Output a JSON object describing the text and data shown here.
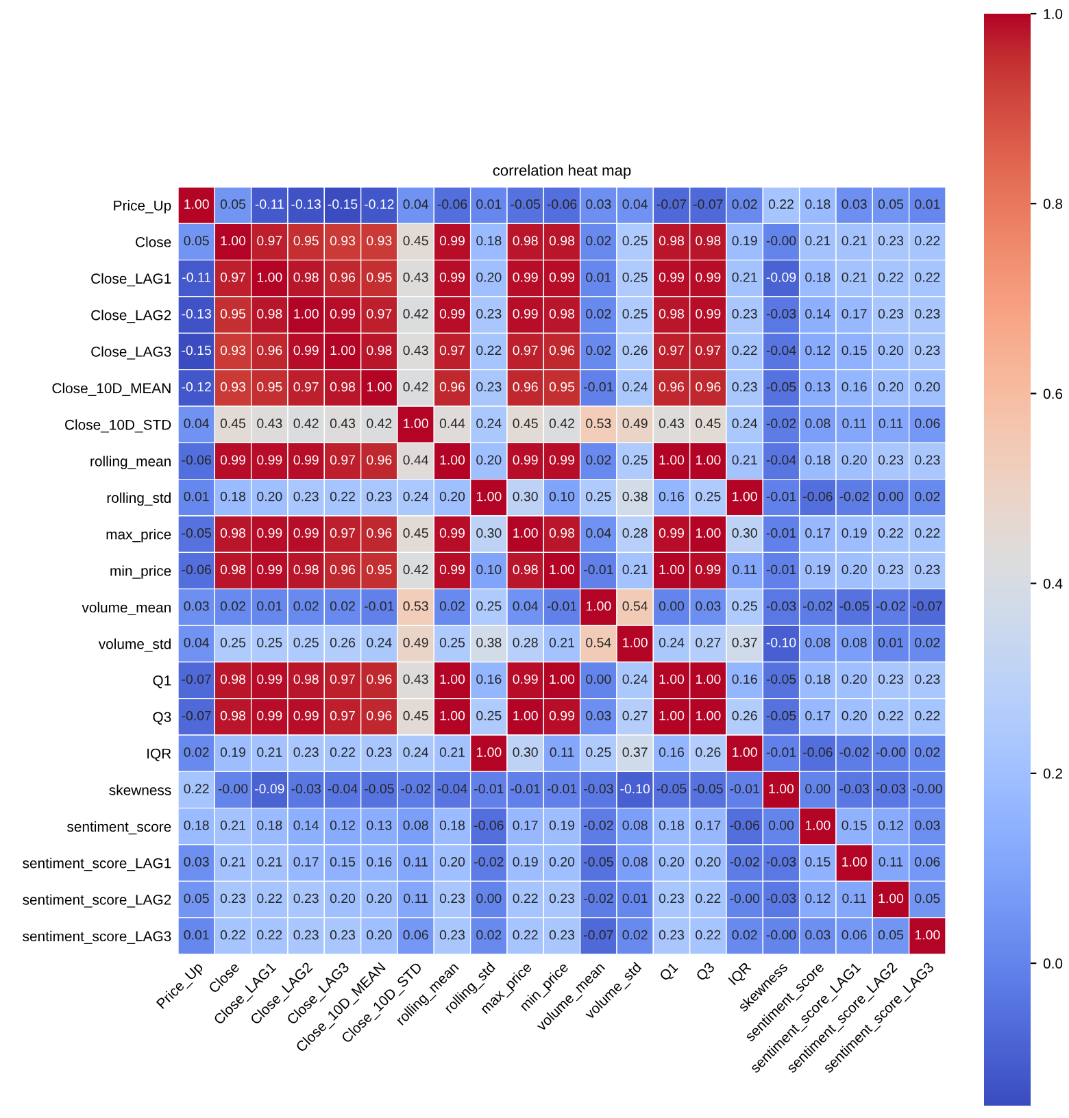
{
  "chart_data": {
    "type": "heatmap",
    "title": "correlation heat map",
    "categories": [
      "Price_Up",
      "Close",
      "Close_LAG1",
      "Close_LAG2",
      "Close_LAG3",
      "Close_10D_MEAN",
      "Close_10D_STD",
      "rolling_mean",
      "rolling_std",
      "max_price",
      "min_price",
      "volume_mean",
      "volume_std",
      "Q1",
      "Q3",
      "IQR",
      "skewness",
      "sentiment_score",
      "sentiment_score_LAG1",
      "sentiment_score_LAG2",
      "sentiment_score_LAG3"
    ],
    "y_categories": [
      "Price_Up",
      "Close",
      "Close_LAG1",
      "Close_LAG2",
      "Close_LAG3",
      "Close_10D_MEAN",
      "Close_10D_STD",
      "rolling_mean",
      "rolling_std",
      "max_price",
      "min_price",
      "volume_mean",
      "volume_std",
      "Q1",
      "Q3",
      "IQR",
      "skewness",
      "sentiment_score",
      "sentiment_score_LAG1",
      "sentiment_score_LAG2",
      "sentiment_score_LAG3"
    ],
    "cells": [
      [
        1.0,
        0.05,
        -0.11,
        -0.13,
        -0.15,
        -0.12,
        0.04,
        -0.06,
        0.01,
        -0.05,
        -0.06,
        0.03,
        0.04,
        -0.07,
        -0.07,
        0.02,
        0.22,
        0.18,
        0.03,
        0.05,
        0.01
      ],
      [
        0.05,
        1.0,
        0.97,
        0.95,
        0.93,
        0.93,
        0.45,
        0.99,
        0.18,
        0.98,
        0.98,
        0.02,
        0.25,
        0.98,
        0.98,
        0.19,
        -0.0,
        0.21,
        0.21,
        0.23,
        0.22
      ],
      [
        -0.11,
        0.97,
        1.0,
        0.98,
        0.96,
        0.95,
        0.43,
        0.99,
        0.2,
        0.99,
        0.99,
        0.01,
        0.25,
        0.99,
        0.99,
        0.21,
        -0.09,
        0.18,
        0.21,
        0.22,
        0.22
      ],
      [
        -0.13,
        0.95,
        0.98,
        1.0,
        0.99,
        0.97,
        0.42,
        0.99,
        0.23,
        0.99,
        0.98,
        0.02,
        0.25,
        0.98,
        0.99,
        0.23,
        -0.03,
        0.14,
        0.17,
        0.23,
        0.23
      ],
      [
        -0.15,
        0.93,
        0.96,
        0.99,
        1.0,
        0.98,
        0.43,
        0.97,
        0.22,
        0.97,
        0.96,
        0.02,
        0.26,
        0.97,
        0.97,
        0.22,
        -0.04,
        0.12,
        0.15,
        0.2,
        0.23
      ],
      [
        -0.12,
        0.93,
        0.95,
        0.97,
        0.98,
        1.0,
        0.42,
        0.96,
        0.23,
        0.96,
        0.95,
        -0.01,
        0.24,
        0.96,
        0.96,
        0.23,
        -0.05,
        0.13,
        0.16,
        0.2,
        0.2
      ],
      [
        0.04,
        0.45,
        0.43,
        0.42,
        0.43,
        0.42,
        1.0,
        0.44,
        0.24,
        0.45,
        0.42,
        0.53,
        0.49,
        0.43,
        0.45,
        0.24,
        -0.02,
        0.08,
        0.11,
        0.11,
        0.06
      ],
      [
        -0.06,
        0.99,
        0.99,
        0.99,
        0.97,
        0.96,
        0.44,
        1.0,
        0.2,
        0.99,
        0.99,
        0.02,
        0.25,
        1.0,
        1.0,
        0.21,
        -0.04,
        0.18,
        0.2,
        0.23,
        0.23
      ],
      [
        0.01,
        0.18,
        0.2,
        0.23,
        0.22,
        0.23,
        0.24,
        0.2,
        1.0,
        0.3,
        0.1,
        0.25,
        0.38,
        0.16,
        0.25,
        1.0,
        -0.01,
        -0.06,
        -0.02,
        0.0,
        0.02
      ],
      [
        -0.05,
        0.98,
        0.99,
        0.99,
        0.97,
        0.96,
        0.45,
        0.99,
        0.3,
        1.0,
        0.98,
        0.04,
        0.28,
        0.99,
        1.0,
        0.3,
        -0.01,
        0.17,
        0.19,
        0.22,
        0.22
      ],
      [
        -0.06,
        0.98,
        0.99,
        0.98,
        0.96,
        0.95,
        0.42,
        0.99,
        0.1,
        0.98,
        1.0,
        -0.01,
        0.21,
        1.0,
        0.99,
        0.11,
        -0.01,
        0.19,
        0.2,
        0.23,
        0.23
      ],
      [
        0.03,
        0.02,
        0.01,
        0.02,
        0.02,
        -0.01,
        0.53,
        0.02,
        0.25,
        0.04,
        -0.01,
        1.0,
        0.54,
        0.0,
        0.03,
        0.25,
        -0.03,
        -0.02,
        -0.05,
        -0.02,
        -0.07
      ],
      [
        0.04,
        0.25,
        0.25,
        0.25,
        0.26,
        0.24,
        0.49,
        0.25,
        0.38,
        0.28,
        0.21,
        0.54,
        1.0,
        0.24,
        0.27,
        0.37,
        -0.1,
        0.08,
        0.08,
        0.01,
        0.02
      ],
      [
        -0.07,
        0.98,
        0.99,
        0.98,
        0.97,
        0.96,
        0.43,
        1.0,
        0.16,
        0.99,
        1.0,
        0.0,
        0.24,
        1.0,
        1.0,
        0.16,
        -0.05,
        0.18,
        0.2,
        0.23,
        0.23
      ],
      [
        -0.07,
        0.98,
        0.99,
        0.99,
        0.97,
        0.96,
        0.45,
        1.0,
        0.25,
        1.0,
        0.99,
        0.03,
        0.27,
        1.0,
        1.0,
        0.26,
        -0.05,
        0.17,
        0.2,
        0.22,
        0.22
      ],
      [
        0.02,
        0.19,
        0.21,
        0.23,
        0.22,
        0.23,
        0.24,
        0.21,
        1.0,
        0.3,
        0.11,
        0.25,
        0.37,
        0.16,
        0.26,
        1.0,
        -0.01,
        -0.06,
        -0.02,
        -0.0,
        0.02
      ],
      [
        0.22,
        -0.0,
        -0.09,
        -0.03,
        -0.04,
        -0.05,
        -0.02,
        -0.04,
        -0.01,
        -0.01,
        -0.01,
        -0.03,
        -0.1,
        -0.05,
        -0.05,
        -0.01,
        1.0,
        0.0,
        -0.03,
        -0.03,
        -0.0
      ],
      [
        0.18,
        0.21,
        0.18,
        0.14,
        0.12,
        0.13,
        0.08,
        0.18,
        -0.06,
        0.17,
        0.19,
        -0.02,
        0.08,
        0.18,
        0.17,
        -0.06,
        0.0,
        1.0,
        0.15,
        0.12,
        0.03
      ],
      [
        0.03,
        0.21,
        0.21,
        0.17,
        0.15,
        0.16,
        0.11,
        0.2,
        -0.02,
        0.19,
        0.2,
        -0.05,
        0.08,
        0.2,
        0.2,
        -0.02,
        -0.03,
        0.15,
        1.0,
        0.11,
        0.06
      ],
      [
        0.05,
        0.23,
        0.22,
        0.23,
        0.2,
        0.2,
        0.11,
        0.23,
        0.0,
        0.22,
        0.23,
        -0.02,
        0.01,
        0.23,
        0.22,
        -0.0,
        -0.03,
        0.12,
        0.11,
        1.0,
        0.05
      ],
      [
        0.01,
        0.22,
        0.22,
        0.23,
        0.23,
        0.2,
        0.06,
        0.23,
        0.02,
        0.22,
        0.23,
        -0.07,
        0.02,
        0.23,
        0.22,
        0.02,
        -0.0,
        0.03,
        0.06,
        0.05,
        1.0
      ]
    ],
    "cell_labels": [
      [
        "1.00",
        "0.05",
        "-0.11",
        "-0.13",
        "-0.15",
        "-0.12",
        "0.04",
        "-0.06",
        "0.01",
        "-0.05",
        "-0.06",
        "0.03",
        "0.04",
        "-0.07",
        "-0.07",
        "0.02",
        "0.22",
        "0.18",
        "0.03",
        "0.05",
        "0.01"
      ],
      [
        "0.05",
        "1.00",
        "0.97",
        "0.95",
        "0.93",
        "0.93",
        "0.45",
        "0.99",
        "0.18",
        "0.98",
        "0.98",
        "0.02",
        "0.25",
        "0.98",
        "0.98",
        "0.19",
        "-0.00",
        "0.21",
        "0.21",
        "0.23",
        "0.22"
      ],
      [
        "-0.11",
        "0.97",
        "1.00",
        "0.98",
        "0.96",
        "0.95",
        "0.43",
        "0.99",
        "0.20",
        "0.99",
        "0.99",
        "0.01",
        "0.25",
        "0.99",
        "0.99",
        "0.21",
        "-0.09",
        "0.18",
        "0.21",
        "0.22",
        "0.22"
      ],
      [
        "-0.13",
        "0.95",
        "0.98",
        "1.00",
        "0.99",
        "0.97",
        "0.42",
        "0.99",
        "0.23",
        "0.99",
        "0.98",
        "0.02",
        "0.25",
        "0.98",
        "0.99",
        "0.23",
        "-0.03",
        "0.14",
        "0.17",
        "0.23",
        "0.23"
      ],
      [
        "-0.15",
        "0.93",
        "0.96",
        "0.99",
        "1.00",
        "0.98",
        "0.43",
        "0.97",
        "0.22",
        "0.97",
        "0.96",
        "0.02",
        "0.26",
        "0.97",
        "0.97",
        "0.22",
        "-0.04",
        "0.12",
        "0.15",
        "0.20",
        "0.23"
      ],
      [
        "-0.12",
        "0.93",
        "0.95",
        "0.97",
        "0.98",
        "1.00",
        "0.42",
        "0.96",
        "0.23",
        "0.96",
        "0.95",
        "-0.01",
        "0.24",
        "0.96",
        "0.96",
        "0.23",
        "-0.05",
        "0.13",
        "0.16",
        "0.20",
        "0.20"
      ],
      [
        "0.04",
        "0.45",
        "0.43",
        "0.42",
        "0.43",
        "0.42",
        "1.00",
        "0.44",
        "0.24",
        "0.45",
        "0.42",
        "0.53",
        "0.49",
        "0.43",
        "0.45",
        "0.24",
        "-0.02",
        "0.08",
        "0.11",
        "0.11",
        "0.06"
      ],
      [
        "-0.06",
        "0.99",
        "0.99",
        "0.99",
        "0.97",
        "0.96",
        "0.44",
        "1.00",
        "0.20",
        "0.99",
        "0.99",
        "0.02",
        "0.25",
        "1.00",
        "1.00",
        "0.21",
        "-0.04",
        "0.18",
        "0.20",
        "0.23",
        "0.23"
      ],
      [
        "0.01",
        "0.18",
        "0.20",
        "0.23",
        "0.22",
        "0.23",
        "0.24",
        "0.20",
        "1.00",
        "0.30",
        "0.10",
        "0.25",
        "0.38",
        "0.16",
        "0.25",
        "1.00",
        "-0.01",
        "-0.06",
        "-0.02",
        "0.00",
        "0.02"
      ],
      [
        "-0.05",
        "0.98",
        "0.99",
        "0.99",
        "0.97",
        "0.96",
        "0.45",
        "0.99",
        "0.30",
        "1.00",
        "0.98",
        "0.04",
        "0.28",
        "0.99",
        "1.00",
        "0.30",
        "-0.01",
        "0.17",
        "0.19",
        "0.22",
        "0.22"
      ],
      [
        "-0.06",
        "0.98",
        "0.99",
        "0.98",
        "0.96",
        "0.95",
        "0.42",
        "0.99",
        "0.10",
        "0.98",
        "1.00",
        "-0.01",
        "0.21",
        "1.00",
        "0.99",
        "0.11",
        "-0.01",
        "0.19",
        "0.20",
        "0.23",
        "0.23"
      ],
      [
        "0.03",
        "0.02",
        "0.01",
        "0.02",
        "0.02",
        "-0.01",
        "0.53",
        "0.02",
        "0.25",
        "0.04",
        "-0.01",
        "1.00",
        "0.54",
        "0.00",
        "0.03",
        "0.25",
        "-0.03",
        "-0.02",
        "-0.05",
        "-0.02",
        "-0.07"
      ],
      [
        "0.04",
        "0.25",
        "0.25",
        "0.25",
        "0.26",
        "0.24",
        "0.49",
        "0.25",
        "0.38",
        "0.28",
        "0.21",
        "0.54",
        "1.00",
        "0.24",
        "0.27",
        "0.37",
        "-0.10",
        "0.08",
        "0.08",
        "0.01",
        "0.02"
      ],
      [
        "-0.07",
        "0.98",
        "0.99",
        "0.98",
        "0.97",
        "0.96",
        "0.43",
        "1.00",
        "0.16",
        "0.99",
        "1.00",
        "0.00",
        "0.24",
        "1.00",
        "1.00",
        "0.16",
        "-0.05",
        "0.18",
        "0.20",
        "0.23",
        "0.23"
      ],
      [
        "-0.07",
        "0.98",
        "0.99",
        "0.99",
        "0.97",
        "0.96",
        "0.45",
        "1.00",
        "0.25",
        "1.00",
        "0.99",
        "0.03",
        "0.27",
        "1.00",
        "1.00",
        "0.26",
        "-0.05",
        "0.17",
        "0.20",
        "0.22",
        "0.22"
      ],
      [
        "0.02",
        "0.19",
        "0.21",
        "0.23",
        "0.22",
        "0.23",
        "0.24",
        "0.21",
        "1.00",
        "0.30",
        "0.11",
        "0.25",
        "0.37",
        "0.16",
        "0.26",
        "1.00",
        "-0.01",
        "-0.06",
        "-0.02",
        "-0.00",
        "0.02"
      ],
      [
        "0.22",
        "-0.00",
        "-0.09",
        "-0.03",
        "-0.04",
        "-0.05",
        "-0.02",
        "-0.04",
        "-0.01",
        "-0.01",
        "-0.01",
        "-0.03",
        "-0.10",
        "-0.05",
        "-0.05",
        "-0.01",
        "1.00",
        "0.00",
        "-0.03",
        "-0.03",
        "-0.00"
      ],
      [
        "0.18",
        "0.21",
        "0.18",
        "0.14",
        "0.12",
        "0.13",
        "0.08",
        "0.18",
        "-0.06",
        "0.17",
        "0.19",
        "-0.02",
        "0.08",
        "0.18",
        "0.17",
        "-0.06",
        "0.00",
        "1.00",
        "0.15",
        "0.12",
        "0.03"
      ],
      [
        "0.03",
        "0.21",
        "0.21",
        "0.17",
        "0.15",
        "0.16",
        "0.11",
        "0.20",
        "-0.02",
        "0.19",
        "0.20",
        "-0.05",
        "0.08",
        "0.20",
        "0.20",
        "-0.02",
        "-0.03",
        "0.15",
        "1.00",
        "0.11",
        "0.06"
      ],
      [
        "0.05",
        "0.23",
        "0.22",
        "0.23",
        "0.20",
        "0.20",
        "0.11",
        "0.23",
        "0.00",
        "0.22",
        "0.23",
        "-0.02",
        "0.01",
        "0.23",
        "0.22",
        "-0.00",
        "-0.03",
        "0.12",
        "0.11",
        "1.00",
        "0.05"
      ],
      [
        "0.01",
        "0.22",
        "0.22",
        "0.23",
        "0.23",
        "0.20",
        "0.06",
        "0.23",
        "0.02",
        "0.22",
        "0.23",
        "-0.07",
        "0.02",
        "0.23",
        "0.22",
        "0.02",
        "-0.00",
        "0.03",
        "0.06",
        "0.05",
        "1.00"
      ]
    ],
    "clim": [
      -0.15,
      1.0
    ],
    "cticks": [
      {
        "value": 0.0,
        "label": "0.0"
      },
      {
        "value": 0.2,
        "label": "0.2"
      },
      {
        "value": 0.4,
        "label": "0.4"
      },
      {
        "value": 0.6,
        "label": "0.6"
      },
      {
        "value": 0.8,
        "label": "0.8"
      },
      {
        "value": 1.0,
        "label": "1.0"
      }
    ],
    "data_labels": true
  }
}
